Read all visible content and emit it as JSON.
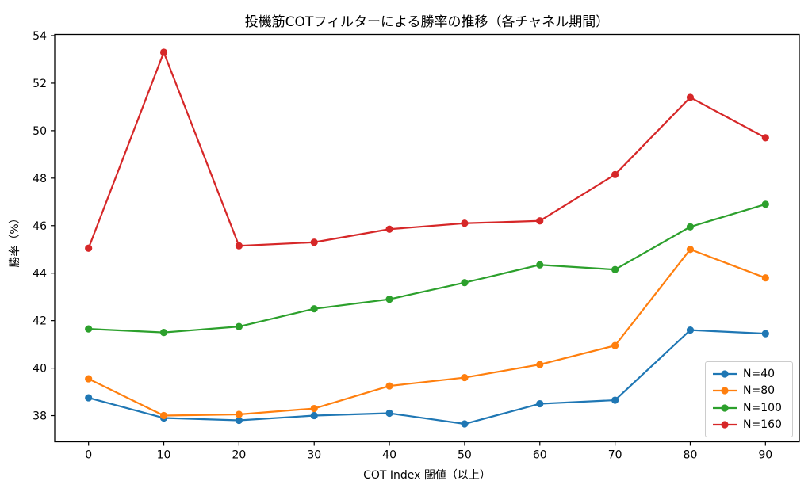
{
  "chart_data": {
    "type": "line",
    "title": "投機筋COTフィルターによる勝率の推移（各チャネル期間）",
    "xlabel": "COT Index 閾値（以上）",
    "ylabel": "勝率（%）",
    "x": [
      0,
      10,
      20,
      30,
      40,
      50,
      60,
      70,
      80,
      90
    ],
    "series": [
      {
        "name": "N=40",
        "color": "#1f77b4",
        "values": [
          38.75,
          37.9,
          37.8,
          38.0,
          38.1,
          37.65,
          38.5,
          38.65,
          41.6,
          41.45
        ]
      },
      {
        "name": "N=80",
        "color": "#ff7f0e",
        "values": [
          39.55,
          38.0,
          38.05,
          38.3,
          39.25,
          39.6,
          40.15,
          40.95,
          45.0,
          43.8
        ]
      },
      {
        "name": "N=100",
        "color": "#2ca02c",
        "values": [
          41.65,
          41.5,
          41.75,
          42.5,
          42.9,
          43.6,
          44.35,
          44.15,
          45.95,
          46.9
        ]
      },
      {
        "name": "N=160",
        "color": "#d62728",
        "values": [
          45.05,
          53.3,
          45.15,
          45.3,
          45.85,
          46.1,
          46.2,
          48.15,
          51.4,
          49.7
        ]
      }
    ],
    "xticks": [
      0,
      10,
      20,
      30,
      40,
      50,
      60,
      70,
      80,
      90
    ],
    "yticks": [
      38,
      40,
      42,
      44,
      46,
      48,
      50,
      52,
      54
    ],
    "xlim": [
      -4.5,
      94.5
    ],
    "ylim": [
      36.9,
      54.05
    ],
    "grid": false,
    "legend_position": "lower right",
    "frame_color": "#000000",
    "tick_label_color": "#000000"
  }
}
